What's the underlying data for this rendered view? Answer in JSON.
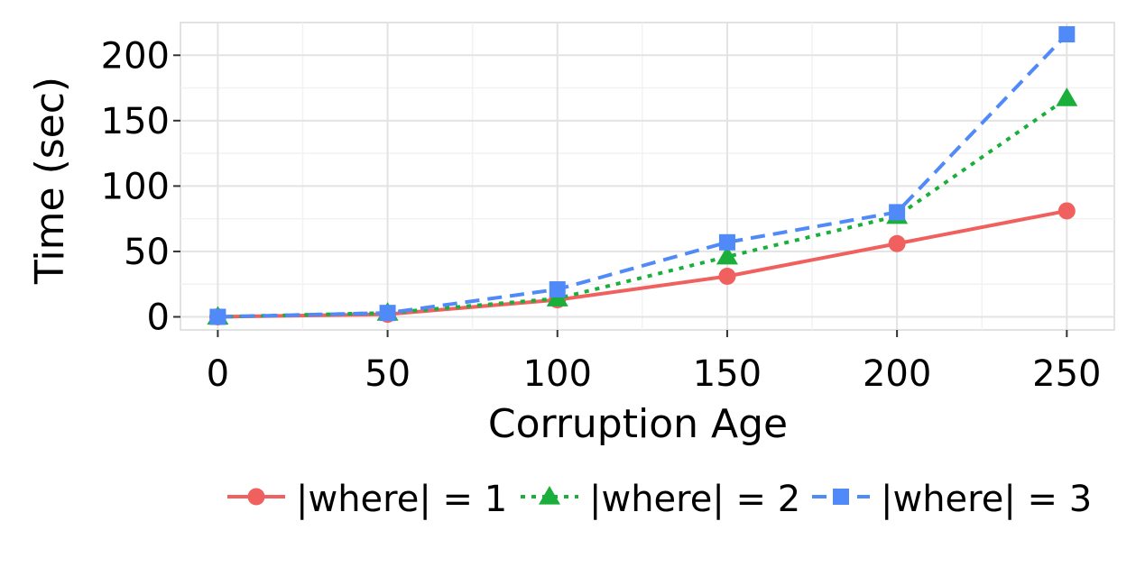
{
  "chart_data": {
    "type": "line",
    "title": "",
    "xlabel": "Corruption Age",
    "ylabel": "Time (sec)",
    "x": [
      0,
      50,
      100,
      150,
      200,
      250
    ],
    "xlim": [
      -11,
      264
    ],
    "ylim": [
      -10,
      225
    ],
    "xticks": [
      "0",
      "50",
      "100",
      "150",
      "200",
      "250"
    ],
    "yticks": [
      "0",
      "50",
      "100",
      "150",
      "200"
    ],
    "grid": true,
    "legend_position": "bottom",
    "series": [
      {
        "name": "|where| = 1",
        "values": [
          0,
          2,
          13,
          31,
          56,
          81
        ],
        "color": "#F0605E",
        "dash": "solid",
        "marker": "circle"
      },
      {
        "name": "|where| = 2",
        "values": [
          0,
          3,
          14,
          46,
          77,
          167
        ],
        "color": "#1AAF3A",
        "dash": "dotted",
        "marker": "triangle"
      },
      {
        "name": "|where| = 3",
        "values": [
          0,
          3,
          21,
          57,
          80,
          216
        ],
        "color": "#508AF8",
        "dash": "dashed",
        "marker": "square"
      }
    ]
  }
}
